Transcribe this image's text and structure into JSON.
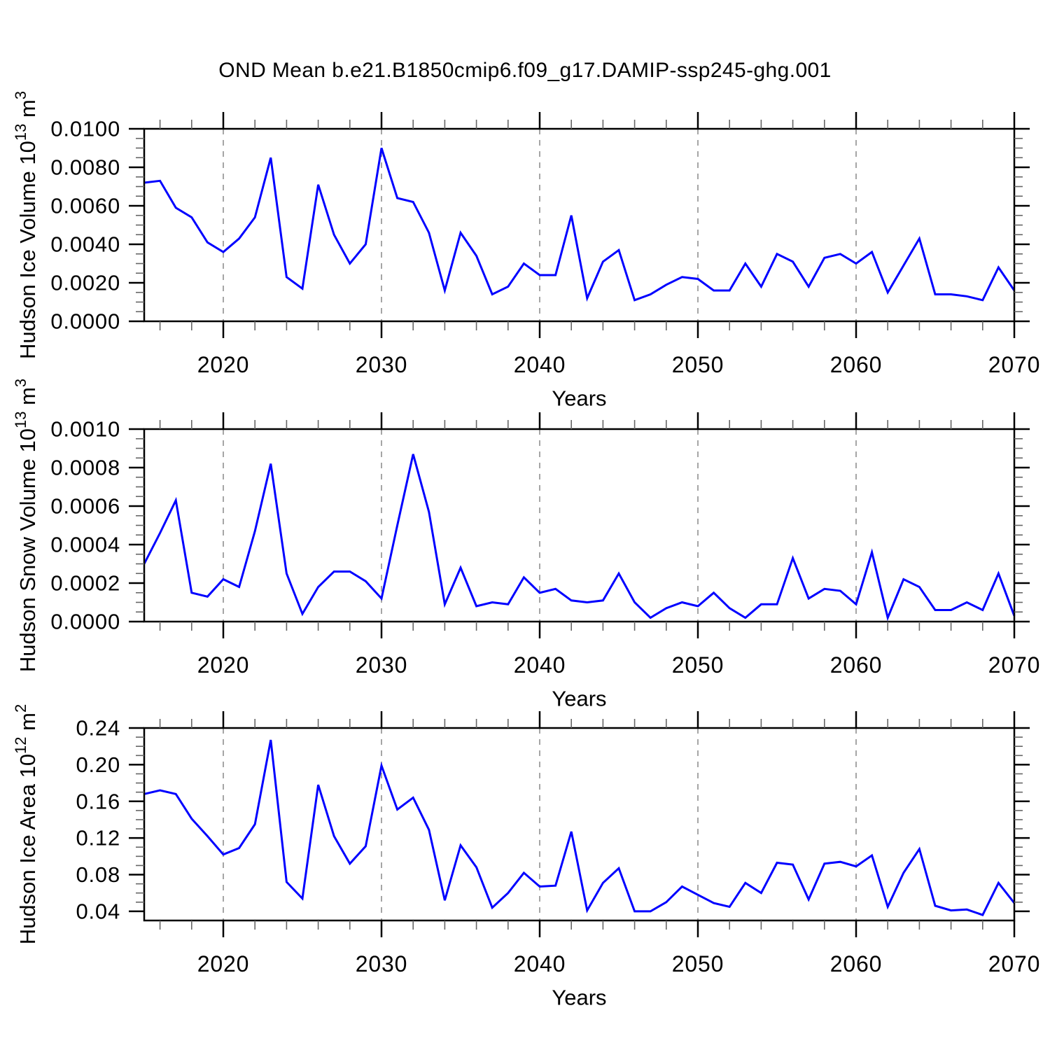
{
  "title": "OND Mean b.e21.B1850cmip6.f09_g17.DAMIP-ssp245-ghg.001",
  "colors": {
    "line": "#0000ff",
    "grid": "#7f7f7f",
    "frame": "#000000",
    "major_tick": "#000000",
    "minor_tick": "#666666",
    "text": "#000000",
    "background": "#ffffff"
  },
  "x_axis": {
    "label": "Years",
    "range": [
      2015,
      2070
    ],
    "major_ticks": [
      2020,
      2030,
      2040,
      2050,
      2060,
      2070
    ],
    "major_tick_labels": [
      "2020",
      "2030",
      "2040",
      "2050",
      "2060",
      "2070"
    ],
    "minor_tick_step_years": 2,
    "gridlines_at": [
      2020,
      2030,
      2040,
      2050,
      2060
    ],
    "gridline_style": "dashed"
  },
  "chart_data": [
    {
      "type": "line",
      "name": "hudson-ice-volume",
      "ylabel_plain": "Hudson Ice Volume 10^13 m^3",
      "ylabel_parts": [
        {
          "text": "Hudson Ice Volume 10",
          "sup": false
        },
        {
          "text": "13",
          "sup": true
        },
        {
          "text": " m",
          "sup": false
        },
        {
          "text": "3",
          "sup": true
        }
      ],
      "xlabel": "Years",
      "xlim": [
        2015,
        2070
      ],
      "ylim": [
        0.0,
        0.01
      ],
      "y_major_ticks": [
        0.0,
        0.002,
        0.004,
        0.006,
        0.008,
        0.01
      ],
      "y_major_tick_labels": [
        "0.0000",
        "0.0020",
        "0.0040",
        "0.0060",
        "0.0080",
        "0.0100"
      ],
      "y_minor_step": 0.0005,
      "grid": false,
      "legend": "none",
      "x": [
        2015,
        2016,
        2017,
        2018,
        2019,
        2020,
        2021,
        2022,
        2023,
        2024,
        2025,
        2026,
        2027,
        2028,
        2029,
        2030,
        2031,
        2032,
        2033,
        2034,
        2035,
        2036,
        2037,
        2038,
        2039,
        2040,
        2041,
        2042,
        2043,
        2044,
        2045,
        2046,
        2047,
        2048,
        2049,
        2050,
        2051,
        2052,
        2053,
        2054,
        2055,
        2056,
        2057,
        2058,
        2059,
        2060,
        2061,
        2062,
        2063,
        2064,
        2065,
        2066,
        2067,
        2068,
        2069,
        2070
      ],
      "y": [
        0.0072,
        0.0073,
        0.0059,
        0.0054,
        0.0041,
        0.0036,
        0.0043,
        0.0054,
        0.0085,
        0.0023,
        0.0017,
        0.0071,
        0.0045,
        0.003,
        0.004,
        0.009,
        0.0064,
        0.0062,
        0.0046,
        0.0016,
        0.0046,
        0.0034,
        0.0014,
        0.0018,
        0.003,
        0.0024,
        0.0024,
        0.0055,
        0.0012,
        0.0031,
        0.0037,
        0.0011,
        0.0014,
        0.0019,
        0.0023,
        0.0022,
        0.0016,
        0.0016,
        0.003,
        0.0018,
        0.0035,
        0.0031,
        0.0018,
        0.0033,
        0.0035,
        0.003,
        0.0036,
        0.0015,
        0.0029,
        0.0043,
        0.0014,
        0.0014,
        0.0013,
        0.0011,
        0.0028,
        0.0016
      ]
    },
    {
      "type": "line",
      "name": "hudson-snow-volume",
      "ylabel_plain": "Hudson Snow Volume 10^13 m^3",
      "ylabel_parts": [
        {
          "text": "Hudson Snow Volume 10",
          "sup": false
        },
        {
          "text": "13",
          "sup": true
        },
        {
          "text": " m",
          "sup": false
        },
        {
          "text": "3",
          "sup": true
        }
      ],
      "xlabel": "Years",
      "xlim": [
        2015,
        2070
      ],
      "ylim": [
        0.0,
        0.001
      ],
      "y_major_ticks": [
        0.0,
        0.0002,
        0.0004,
        0.0006,
        0.0008,
        0.001
      ],
      "y_major_tick_labels": [
        "0.0000",
        "0.0002",
        "0.0004",
        "0.0006",
        "0.0008",
        "0.0010"
      ],
      "y_minor_step": 5e-05,
      "grid": false,
      "legend": "none",
      "x": [
        2015,
        2016,
        2017,
        2018,
        2019,
        2020,
        2021,
        2022,
        2023,
        2024,
        2025,
        2026,
        2027,
        2028,
        2029,
        2030,
        2031,
        2032,
        2033,
        2034,
        2035,
        2036,
        2037,
        2038,
        2039,
        2040,
        2041,
        2042,
        2043,
        2044,
        2045,
        2046,
        2047,
        2048,
        2049,
        2050,
        2051,
        2052,
        2053,
        2054,
        2055,
        2056,
        2057,
        2058,
        2059,
        2060,
        2061,
        2062,
        2063,
        2064,
        2065,
        2066,
        2067,
        2068,
        2069,
        2070
      ],
      "y": [
        0.0003,
        0.00046,
        0.00063,
        0.00015,
        0.00013,
        0.00022,
        0.00018,
        0.00047,
        0.00082,
        0.00025,
        4e-05,
        0.00018,
        0.00026,
        0.00026,
        0.00021,
        0.00012,
        0.0005,
        0.00087,
        0.00057,
        9e-05,
        0.00028,
        8e-05,
        0.0001,
        9e-05,
        0.00023,
        0.00015,
        0.00017,
        0.00011,
        0.0001,
        0.00011,
        0.00025,
        0.0001,
        2e-05,
        7e-05,
        0.0001,
        8e-05,
        0.00015,
        7e-05,
        2e-05,
        9e-05,
        9e-05,
        0.00033,
        0.00012,
        0.00017,
        0.00016,
        9e-05,
        0.00036,
        2e-05,
        0.00022,
        0.00018,
        6e-05,
        6e-05,
        0.0001,
        6e-05,
        0.00025,
        3e-05
      ]
    },
    {
      "type": "line",
      "name": "hudson-ice-area",
      "ylabel_plain": "Hudson Ice Area 10^12 m^2",
      "ylabel_parts": [
        {
          "text": "Hudson Ice Area 10",
          "sup": false
        },
        {
          "text": "12",
          "sup": true
        },
        {
          "text": " m",
          "sup": false
        },
        {
          "text": "2",
          "sup": true
        }
      ],
      "xlabel": "Years",
      "xlim": [
        2015,
        2070
      ],
      "ylim": [
        0.03,
        0.24
      ],
      "y_major_ticks": [
        0.04,
        0.08,
        0.12,
        0.16,
        0.2,
        0.24
      ],
      "y_major_tick_labels": [
        "0.04",
        "0.08",
        "0.12",
        "0.16",
        "0.20",
        "0.24"
      ],
      "y_minor_step": 0.01,
      "grid": false,
      "legend": "none",
      "x": [
        2015,
        2016,
        2017,
        2018,
        2019,
        2020,
        2021,
        2022,
        2023,
        2024,
        2025,
        2026,
        2027,
        2028,
        2029,
        2030,
        2031,
        2032,
        2033,
        2034,
        2035,
        2036,
        2037,
        2038,
        2039,
        2040,
        2041,
        2042,
        2043,
        2044,
        2045,
        2046,
        2047,
        2048,
        2049,
        2050,
        2051,
        2052,
        2053,
        2054,
        2055,
        2056,
        2057,
        2058,
        2059,
        2060,
        2061,
        2062,
        2063,
        2064,
        2065,
        2066,
        2067,
        2068,
        2069,
        2070
      ],
      "y": [
        0.168,
        0.172,
        0.168,
        0.141,
        0.122,
        0.102,
        0.109,
        0.135,
        0.227,
        0.072,
        0.054,
        0.178,
        0.122,
        0.092,
        0.111,
        0.199,
        0.151,
        0.164,
        0.129,
        0.052,
        0.112,
        0.088,
        0.044,
        0.06,
        0.082,
        0.067,
        0.068,
        0.127,
        0.041,
        0.071,
        0.087,
        0.04,
        0.04,
        0.05,
        0.067,
        0.058,
        0.049,
        0.045,
        0.071,
        0.06,
        0.093,
        0.091,
        0.053,
        0.092,
        0.094,
        0.089,
        0.101,
        0.045,
        0.082,
        0.108,
        0.046,
        0.041,
        0.042,
        0.036,
        0.071,
        0.049
      ]
    }
  ]
}
